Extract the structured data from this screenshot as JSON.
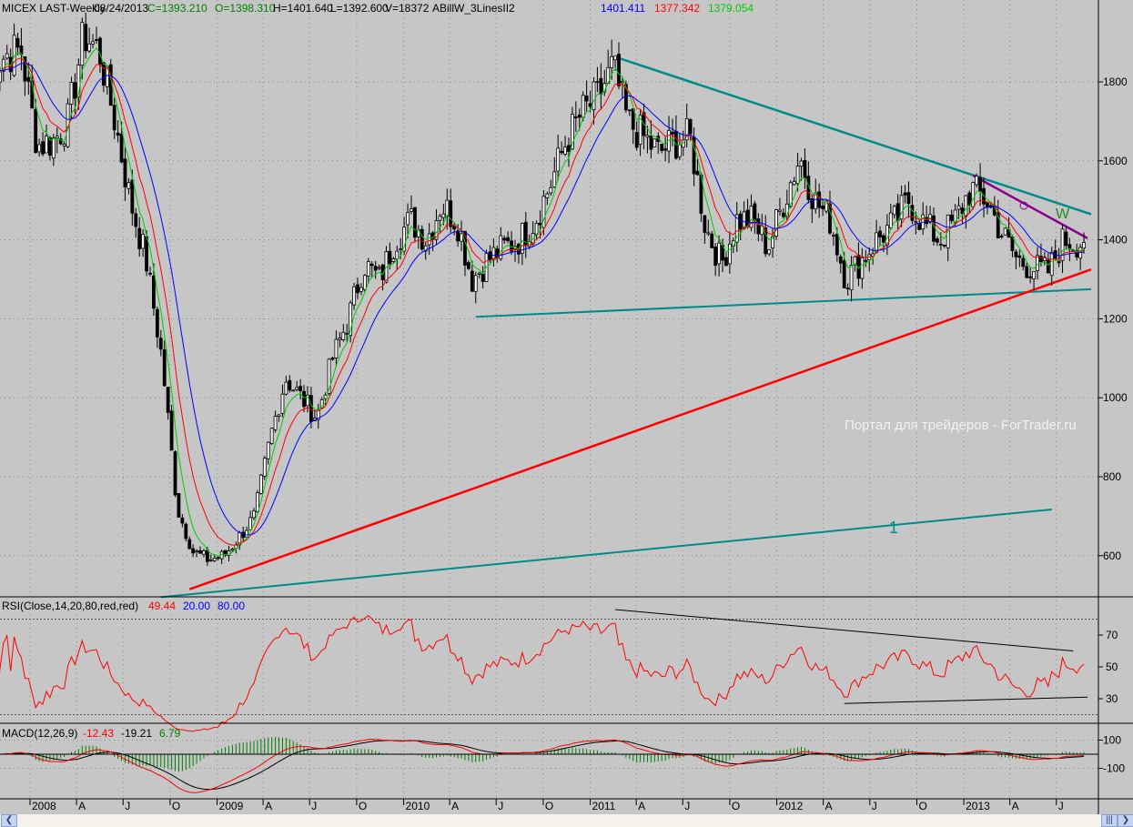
{
  "header": {
    "symbol": "MICEX LAST-Weekly",
    "date": "08/24/2013",
    "close": "C=1393.210",
    "open": "O=1398.310",
    "high": "H=1401.640",
    "low": "L=1392.600",
    "volume": "V=18372",
    "indicator": "ABillW_3LinesII2",
    "line1": "1401.411",
    "line2": "1377.342",
    "line3": "1379.054"
  },
  "rsi_header": {
    "label": "RSI(Close,14,20,80,red,red)",
    "value": "49.44",
    "low": "20.00",
    "high": "80.00"
  },
  "macd_header": {
    "label": "MACD(12,26,9)",
    "macd": "-12.43",
    "signal": "-19.21",
    "hist": "6.79"
  },
  "watermark": "Портал для трейдеров - ForTrader.ru",
  "colors": {
    "bg": "#c6c6c6",
    "green": "#00cc00",
    "red": "#ff0000",
    "blue": "#0000ff",
    "teal": "#008b8b",
    "purple": "#8b008b",
    "textGreen": "#008000"
  },
  "chart_data": {
    "type": "candlestick",
    "title": "MICEX LAST-Weekly",
    "price_ticks": [
      600,
      800,
      1000,
      1200,
      1400,
      1600,
      1800
    ],
    "ylim": [
      480,
      1980
    ],
    "rsi_ticks": [
      30,
      50,
      70
    ],
    "rsi_levels": [
      20,
      80
    ],
    "macd_ticks": [
      100,
      -100
    ],
    "date_ticks": [
      {
        "d": "2008-01-01",
        "t": "2008"
      },
      {
        "d": "2008-04-01",
        "t": "A"
      },
      {
        "d": "2008-07-01",
        "t": "J"
      },
      {
        "d": "2008-10-01",
        "t": "O"
      },
      {
        "d": "2009-01-01",
        "t": "2009"
      },
      {
        "d": "2009-04-01",
        "t": "A"
      },
      {
        "d": "2009-07-01",
        "t": "J"
      },
      {
        "d": "2009-10-01",
        "t": "O"
      },
      {
        "d": "2010-01-01",
        "t": "2010"
      },
      {
        "d": "2010-04-01",
        "t": "A"
      },
      {
        "d": "2010-07-01",
        "t": "J"
      },
      {
        "d": "2010-10-01",
        "t": "O"
      },
      {
        "d": "2011-01-01",
        "t": "2011"
      },
      {
        "d": "2011-04-01",
        "t": "A"
      },
      {
        "d": "2011-07-01",
        "t": "J"
      },
      {
        "d": "2011-10-01",
        "t": "O"
      },
      {
        "d": "2012-01-01",
        "t": "2012"
      },
      {
        "d": "2012-04-01",
        "t": "A"
      },
      {
        "d": "2012-07-01",
        "t": "J"
      },
      {
        "d": "2012-10-01",
        "t": "O"
      },
      {
        "d": "2013-01-01",
        "t": "2013"
      },
      {
        "d": "2013-04-01",
        "t": "A"
      },
      {
        "d": "2013-07-01",
        "t": "J"
      }
    ],
    "monthly_close": [
      [
        "2007-10",
        1830
      ],
      [
        "2007-11",
        1870
      ],
      [
        "2007-12",
        1880
      ],
      [
        "2008-01",
        1640
      ],
      [
        "2008-02",
        1650
      ],
      [
        "2008-03",
        1700
      ],
      [
        "2008-04",
        1920
      ],
      [
        "2008-05",
        1880
      ],
      [
        "2008-06",
        1700
      ],
      [
        "2008-07",
        1500
      ],
      [
        "2008-08",
        1350
      ],
      [
        "2008-09",
        1100
      ],
      [
        "2008-10",
        720
      ],
      [
        "2008-11",
        610
      ],
      [
        "2008-12",
        590
      ],
      [
        "2009-01",
        600
      ],
      [
        "2009-02",
        650
      ],
      [
        "2009-03",
        700
      ],
      [
        "2009-04",
        900
      ],
      [
        "2009-05",
        1050
      ],
      [
        "2009-06",
        1000
      ],
      [
        "2009-07",
        950
      ],
      [
        "2009-08",
        1100
      ],
      [
        "2009-09",
        1200
      ],
      [
        "2009-10",
        1340
      ],
      [
        "2009-11",
        1300
      ],
      [
        "2009-12",
        1400
      ],
      [
        "2010-01",
        1450
      ],
      [
        "2010-02",
        1400
      ],
      [
        "2010-03",
        1490
      ],
      [
        "2010-04",
        1450
      ],
      [
        "2010-05",
        1300
      ],
      [
        "2010-06",
        1350
      ],
      [
        "2010-07",
        1380
      ],
      [
        "2010-08",
        1400
      ],
      [
        "2010-09",
        1450
      ],
      [
        "2010-10",
        1540
      ],
      [
        "2010-11",
        1650
      ],
      [
        "2010-12",
        1720
      ],
      [
        "2011-01",
        1760
      ],
      [
        "2011-02",
        1840
      ],
      [
        "2011-03",
        1700
      ],
      [
        "2011-04",
        1660
      ],
      [
        "2011-05",
        1620
      ],
      [
        "2011-06",
        1650
      ],
      [
        "2011-07",
        1660
      ],
      [
        "2011-08",
        1430
      ],
      [
        "2011-09",
        1340
      ],
      [
        "2011-10",
        1450
      ],
      [
        "2011-11",
        1450
      ],
      [
        "2011-12",
        1380
      ],
      [
        "2012-01",
        1500
      ],
      [
        "2012-02",
        1610
      ],
      [
        "2012-03",
        1500
      ],
      [
        "2012-04",
        1450
      ],
      [
        "2012-05",
        1300
      ],
      [
        "2012-06",
        1350
      ],
      [
        "2012-07",
        1400
      ],
      [
        "2012-08",
        1440
      ],
      [
        "2012-09",
        1500
      ],
      [
        "2012-10",
        1440
      ],
      [
        "2012-11",
        1400
      ],
      [
        "2012-12",
        1450
      ],
      [
        "2013-01",
        1530
      ],
      [
        "2013-02",
        1500
      ],
      [
        "2013-03",
        1420
      ],
      [
        "2013-04",
        1350
      ],
      [
        "2013-05",
        1330
      ],
      [
        "2013-06",
        1320
      ],
      [
        "2013-07",
        1400
      ],
      [
        "2013-08",
        1393
      ]
    ],
    "trendlines": [
      {
        "name": "upper-resistance",
        "color": "#008b8b",
        "from": [
          "2011-02-26",
          1860
        ],
        "to": [
          "2013-09-07",
          1465
        ]
      },
      {
        "name": "support-2010",
        "color": "#008b8b",
        "from": [
          "2010-05-22",
          1205
        ],
        "to": [
          "2013-09-07",
          1275
        ]
      },
      {
        "name": "rising-support",
        "color": "#ff0000",
        "from": [
          "2008-11-08",
          515
        ],
        "to": [
          "2013-09-07",
          1325
        ]
      },
      {
        "name": "channel-line-1",
        "color": "#008b8b",
        "from": [
          "2008-09-13",
          495
        ],
        "to": [
          "2013-06-22",
          717
        ]
      },
      {
        "name": "short-resistance",
        "color": "#8b008b",
        "from": [
          "2013-01-19",
          1563
        ],
        "to": [
          "2013-08-31",
          1404
        ]
      }
    ],
    "labels": {
      "line1": "1",
      "wave": "W"
    },
    "rsi_trendlines": [
      {
        "from": [
          "2011-02-19",
          86
        ],
        "to": [
          "2013-08-03",
          60
        ]
      },
      {
        "from": [
          "2012-05-12",
          27
        ],
        "to": [
          "2013-08-31",
          31
        ]
      }
    ]
  }
}
